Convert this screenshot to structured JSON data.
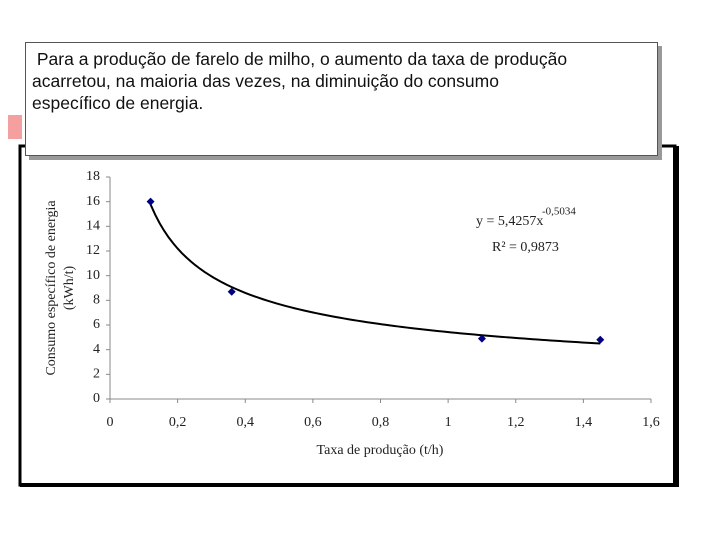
{
  "caption": [
    " Para a produção de farelo de milho, o aumento da taxa de produção",
    "acarretou, na maioria das vezes, na diminuição do consumo",
    "específico de energia."
  ],
  "chart_data": {
    "type": "scatter",
    "xlabel": "Taxa de produção (t/h)",
    "ylabel": [
      "Consumo específico de energia",
      "(kWh/t)"
    ],
    "x": [
      0.12,
      0.36,
      1.1,
      1.45
    ],
    "values": [
      16,
      8.7,
      4.9,
      4.8
    ],
    "color": "#000080",
    "xlim": [
      0,
      1.6
    ],
    "xticks": [
      0,
      {
        "value": 0.2,
        "label": "0,2"
      },
      {
        "value": 0.4,
        "label": "0,4"
      },
      {
        "value": 0.6,
        "label": "0,6"
      },
      {
        "value": 0.8,
        "label": "0,8"
      },
      1,
      {
        "value": 1.2,
        "label": "1,2"
      },
      {
        "value": 1.4,
        "label": "1,4"
      },
      {
        "value": 1.6,
        "label": "1,6"
      }
    ],
    "ylim": [
      0,
      18
    ],
    "yticks": [
      0,
      2,
      4,
      6,
      8,
      10,
      12,
      14,
      16,
      18
    ],
    "trendline": {
      "a": 5.4257,
      "b": -0.5034,
      "equation_label": "y = 5,4257x",
      "exponent_label": "-0,5034",
      "r2_label": "R² = 0,9873"
    }
  }
}
